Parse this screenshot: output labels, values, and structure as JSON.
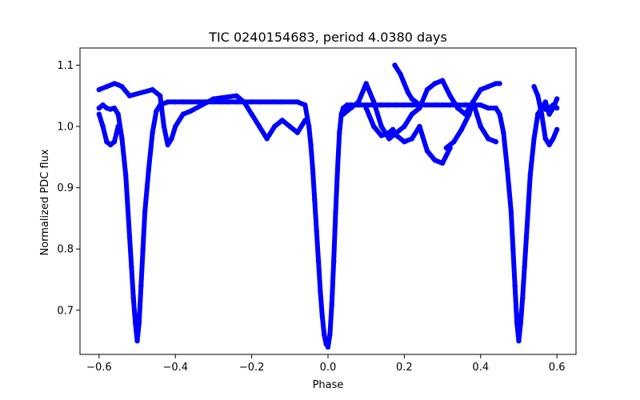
{
  "chart_data": {
    "type": "scatter",
    "title": "TIC 0240154683, period 4.0380 days",
    "xlabel": "Phase",
    "ylabel": "Normalized PDC flux",
    "xlim": [
      -0.65,
      0.65
    ],
    "ylim": [
      0.628,
      1.128
    ],
    "xticks": [
      -0.6,
      -0.4,
      -0.2,
      0.0,
      0.2,
      0.4,
      0.6
    ],
    "xtick_labels": [
      "−0.6",
      "−0.4",
      "−0.2",
      "0.0",
      "0.2",
      "0.4",
      "0.6"
    ],
    "yticks": [
      0.7,
      0.8,
      0.9,
      1.0,
      1.1
    ],
    "ytick_labels": [
      "0.7",
      "0.8",
      "0.9",
      "1.0",
      "1.1"
    ],
    "grid": false,
    "legend": "none",
    "marker_color": "#0000ff",
    "series": [
      {
        "x": [
          -0.6,
          -0.59,
          -0.58,
          -0.57,
          -0.56,
          -0.55,
          -0.54,
          -0.53,
          -0.52,
          -0.515,
          -0.51,
          -0.505,
          -0.5,
          -0.495,
          -0.49,
          -0.485,
          -0.48,
          -0.47,
          -0.46,
          -0.45,
          -0.44,
          -0.42,
          -0.4,
          -0.38,
          -0.36,
          -0.34,
          -0.32,
          -0.3,
          -0.28,
          -0.26,
          -0.24,
          -0.22,
          -0.2,
          -0.18,
          -0.16,
          -0.14,
          -0.12,
          -0.1,
          -0.08,
          -0.06,
          -0.05,
          -0.045,
          -0.04,
          -0.035,
          -0.03,
          -0.025,
          -0.02,
          -0.015,
          -0.01,
          -0.005,
          0.0,
          0.005,
          0.01,
          0.015,
          0.02,
          0.025,
          0.03,
          0.035,
          0.04,
          0.05,
          0.06,
          0.08,
          0.1,
          0.12,
          0.14,
          0.16,
          0.18,
          0.2,
          0.22,
          0.24,
          0.26,
          0.28,
          0.3,
          0.32,
          0.34,
          0.36,
          0.38,
          0.4,
          0.42,
          0.44,
          0.45,
          0.46,
          0.47,
          0.48,
          0.485,
          0.49,
          0.495,
          0.5,
          0.505,
          0.51,
          0.515,
          0.52,
          0.53,
          0.54,
          0.55,
          0.56,
          0.57,
          0.58,
          0.59,
          0.6
        ],
        "y": [
          1.03,
          1.035,
          1.03,
          1.028,
          1.03,
          1.02,
          0.98,
          0.92,
          0.82,
          0.77,
          0.72,
          0.68,
          0.65,
          0.68,
          0.74,
          0.8,
          0.86,
          0.93,
          0.99,
          1.025,
          1.035,
          1.04,
          1.04,
          1.04,
          1.04,
          1.04,
          1.04,
          1.04,
          1.04,
          1.04,
          1.04,
          1.04,
          1.04,
          1.04,
          1.04,
          1.04,
          1.04,
          1.04,
          1.04,
          1.035,
          1.0,
          0.97,
          0.93,
          0.88,
          0.83,
          0.78,
          0.73,
          0.69,
          0.66,
          0.645,
          0.64,
          0.66,
          0.71,
          0.78,
          0.86,
          0.93,
          0.99,
          1.02,
          1.03,
          1.035,
          1.035,
          1.035,
          1.035,
          1.035,
          1.035,
          1.035,
          1.035,
          1.035,
          1.035,
          1.035,
          1.035,
          1.035,
          1.035,
          1.035,
          1.035,
          1.035,
          1.035,
          1.035,
          1.03,
          1.03,
          1.02,
          0.99,
          0.93,
          0.86,
          0.8,
          0.74,
          0.68,
          0.65,
          0.68,
          0.72,
          0.77,
          0.82,
          0.92,
          0.98,
          1.02,
          1.03,
          1.028,
          1.03,
          1.035,
          1.03
        ]
      },
      {
        "x": [
          -0.6,
          -0.58,
          -0.56,
          -0.55,
          -0.54,
          -0.52,
          -0.46,
          -0.44,
          -0.43,
          -0.42,
          -0.41,
          -0.4,
          -0.38,
          -0.36,
          -0.3,
          -0.24,
          -0.22,
          -0.2,
          -0.18,
          -0.16,
          -0.14,
          -0.12,
          -0.1,
          -0.08,
          -0.06
        ],
        "y": [
          1.06,
          1.065,
          1.07,
          1.068,
          1.065,
          1.05,
          1.06,
          1.05,
          1.0,
          0.97,
          0.98,
          1.0,
          1.02,
          1.025,
          1.045,
          1.05,
          1.04,
          1.02,
          1.0,
          0.98,
          1.0,
          1.01,
          1.0,
          0.99,
          1.01
        ]
      },
      {
        "x": [
          -0.6,
          -0.59,
          -0.58,
          -0.57,
          -0.56,
          -0.55
        ],
        "y": [
          1.02,
          1.0,
          0.975,
          0.97,
          0.975,
          1.0
        ]
      },
      {
        "x": [
          0.04,
          0.06,
          0.08,
          0.1,
          0.12,
          0.14,
          0.16,
          0.18,
          0.2,
          0.22,
          0.24,
          0.26,
          0.28,
          0.3,
          0.32,
          0.34,
          0.36,
          0.38,
          0.4,
          0.42,
          0.44,
          0.45
        ],
        "y": [
          1.02,
          1.03,
          1.04,
          1.07,
          1.04,
          1.0,
          0.98,
          0.99,
          1.0,
          1.02,
          1.03,
          1.06,
          1.07,
          1.075,
          1.05,
          1.03,
          1.02,
          1.04,
          1.06,
          1.065,
          1.07,
          1.07
        ]
      },
      {
        "x": [
          0.1,
          0.12,
          0.14,
          0.16,
          0.17,
          0.18,
          0.2,
          0.22,
          0.24,
          0.26,
          0.28,
          0.3,
          0.32
        ],
        "y": [
          1.03,
          1.0,
          0.985,
          0.99,
          0.995,
          0.985,
          0.975,
          0.98,
          1.0,
          0.96,
          0.945,
          0.94,
          0.965
        ]
      },
      {
        "x": [
          0.175,
          0.19,
          0.2,
          0.21,
          0.22,
          0.23,
          0.24
        ],
        "y": [
          1.1,
          1.085,
          1.07,
          1.055,
          1.045,
          1.04,
          1.035
        ]
      },
      {
        "x": [
          0.31,
          0.33,
          0.35,
          0.37,
          0.38,
          0.39,
          0.4,
          0.42,
          0.44
        ],
        "y": [
          0.965,
          0.975,
          0.995,
          1.02,
          1.04,
          1.02,
          1.0,
          0.98,
          0.975
        ]
      },
      {
        "x": [
          0.54,
          0.55,
          0.56,
          0.57,
          0.58,
          0.59,
          0.6
        ],
        "y": [
          1.065,
          1.05,
          1.02,
          0.98,
          0.97,
          0.98,
          0.995
        ]
      },
      {
        "x": [
          0.55,
          0.56,
          0.57,
          0.58,
          0.59,
          0.6
        ],
        "y": [
          1.02,
          1.03,
          1.04,
          1.02,
          1.03,
          1.045
        ]
      }
    ]
  }
}
